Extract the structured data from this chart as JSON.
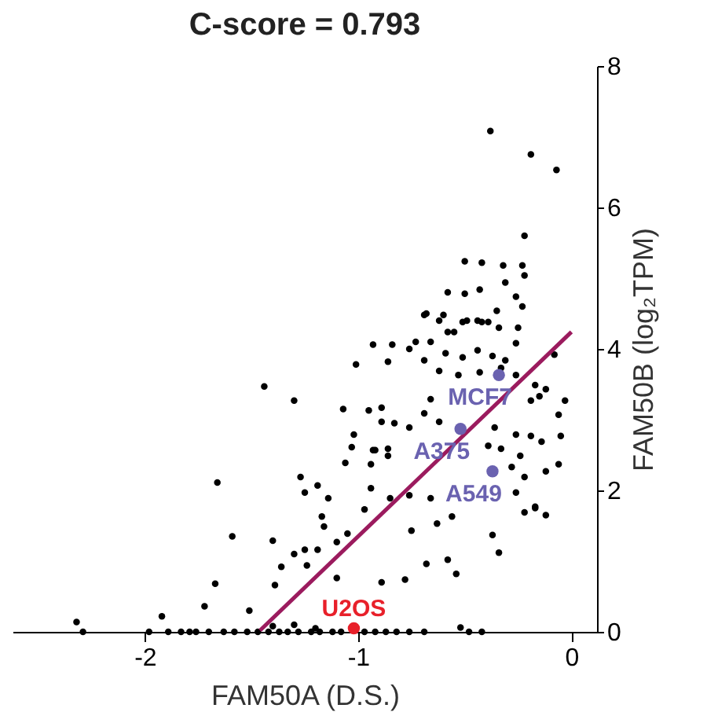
{
  "chart_data": {
    "type": "scatter",
    "title": "C-score = 0.793",
    "xlabel": "FAM50A (D.S.)",
    "ylabel": "FAM50B (log₂TPM)",
    "xlim": [
      -2.62,
      0.12
    ],
    "ylim": [
      0,
      8
    ],
    "xticks": [
      -2,
      -1,
      0
    ],
    "yticks": [
      0,
      2,
      4,
      6,
      8
    ],
    "grid": false,
    "series": [
      {
        "color": "#000000",
        "x": [
          -0.38,
          -0.19,
          -0.07,
          -0.22,
          -0.5,
          -0.42,
          -0.32,
          -0.23,
          -0.22,
          -0.31,
          -0.58,
          -0.5,
          -0.43,
          -0.26,
          -0.23,
          -0.68,
          -0.6,
          -0.93,
          -0.84,
          -0.73,
          -0.66,
          -1.01,
          -0.86,
          -0.69,
          -0.51,
          -0.42,
          -0.35,
          -0.25,
          -0.55,
          -0.08,
          -1.44,
          -1.3,
          -1.07,
          -0.95,
          -0.89,
          -0.89,
          -0.83,
          -1.02,
          -1.03,
          -0.93,
          -0.86,
          -1.06,
          -0.94,
          -1.27,
          -1.66,
          -1.19,
          -1.25,
          -1.14,
          -0.97,
          -1.17,
          -1.16,
          -1.05,
          -1.59,
          -1.4,
          -1.3,
          -1.25,
          -1.19,
          -1.1,
          -1.36,
          -1.24,
          -1.67,
          -1.39,
          -1.1,
          -0.89,
          -0.78,
          -0.68,
          -0.58,
          -0.54,
          -0.34,
          -0.37,
          -0.12,
          -0.17,
          -0.22,
          -0.06,
          -0.05,
          -0.06,
          -0.12,
          -0.56,
          -0.63,
          -0.75,
          -1.72,
          -1.51,
          -2.32,
          -1.92,
          -0.52,
          -2.29,
          -1.98,
          -1.89,
          -1.83,
          -1.79,
          -1.76,
          -1.7,
          -1.63,
          -1.58,
          -1.52,
          -1.47,
          -1.42,
          -1.37,
          -1.33,
          -1.28,
          -1.22,
          -1.18,
          -1.12,
          -1.08,
          -0.97,
          -0.92,
          -0.87,
          -0.82,
          -0.76,
          -0.69,
          -0.48,
          -0.42,
          -1.4,
          -1.3,
          -1.2,
          -0.69,
          -0.62,
          -0.58,
          -0.49,
          -0.44,
          -0.39,
          -0.34,
          -0.26,
          -0.76,
          -0.59,
          -0.51,
          -0.44,
          -0.37,
          -0.31,
          -0.62,
          -0.53,
          -0.43,
          -0.33,
          -0.26,
          -0.17,
          -0.15,
          -0.03,
          -0.66,
          -0.19,
          -0.69,
          -0.76,
          -0.62,
          -0.36,
          -0.26,
          -0.19,
          -0.39,
          -0.33,
          -0.24,
          -0.14,
          -0.92,
          -0.86,
          -0.28,
          -0.22,
          -0.12,
          -0.94,
          -0.85,
          -0.76,
          -0.66,
          -0.26,
          -0.17
        ],
        "values": [
          7.08,
          6.75,
          6.53,
          5.6,
          5.24,
          5.22,
          5.18,
          5.18,
          5.04,
          4.94,
          4.8,
          4.78,
          4.84,
          4.74,
          4.6,
          4.5,
          4.48,
          4.06,
          4.06,
          4.1,
          4.1,
          3.78,
          3.82,
          3.84,
          4.38,
          4.38,
          4.54,
          4.3,
          4.24,
          3.92,
          3.47,
          3.27,
          3.15,
          3.13,
          3.17,
          2.97,
          2.95,
          2.79,
          2.61,
          2.57,
          2.59,
          2.39,
          2.37,
          2.19,
          2.11,
          2.07,
          1.97,
          1.89,
          1.73,
          1.63,
          1.49,
          1.39,
          1.35,
          1.29,
          1.1,
          1.16,
          1.16,
          1.27,
          0.92,
          0.94,
          0.68,
          0.66,
          0.76,
          0.7,
          0.74,
          0.96,
          1.02,
          0.82,
          1.12,
          1.37,
          1.65,
          1.75,
          1.69,
          2.37,
          2.77,
          3.07,
          3.43,
          1.63,
          1.53,
          1.43,
          0.36,
          0.3,
          0.14,
          0.22,
          0.06,
          0,
          0,
          0,
          0,
          0,
          0,
          0,
          0,
          0,
          0,
          0,
          0,
          0,
          0,
          0,
          0,
          0,
          0,
          0,
          0,
          0,
          0,
          0,
          0,
          0,
          0,
          0,
          0.08,
          0.1,
          0.05,
          4.48,
          4.4,
          4.24,
          4.4,
          4.4,
          4.38,
          4.3,
          4.08,
          4,
          3.94,
          3.88,
          3.98,
          3.9,
          3.84,
          3.69,
          3.63,
          3.67,
          3.73,
          3.63,
          3.49,
          3.33,
          3.27,
          3.29,
          3.27,
          3.09,
          2.89,
          2.97,
          2.89,
          2.79,
          2.77,
          2.63,
          2.59,
          2.49,
          2.69,
          2.57,
          2.49,
          2.33,
          2.19,
          2.27,
          2.03,
          1.89,
          1.93,
          1.89,
          1.97,
          1.77
        ]
      },
      {
        "type": "line",
        "color": "#9b1b5e",
        "x": [
          -1.46,
          0
        ],
        "values": [
          0.02,
          4.24
        ]
      },
      {
        "name": "MCF7",
        "color": "#6a62b0",
        "x": [
          -0.34
        ],
        "values": [
          3.63
        ]
      },
      {
        "name": "A375",
        "color": "#6a62b0",
        "x": [
          -0.52
        ],
        "values": [
          2.87
        ]
      },
      {
        "name": "A549",
        "color": "#6a62b0",
        "x": [
          -0.37
        ],
        "values": [
          2.27
        ]
      },
      {
        "name": "U2OS",
        "color": "#e8202a",
        "x": [
          -1.02
        ],
        "values": [
          0.05
        ]
      }
    ]
  }
}
